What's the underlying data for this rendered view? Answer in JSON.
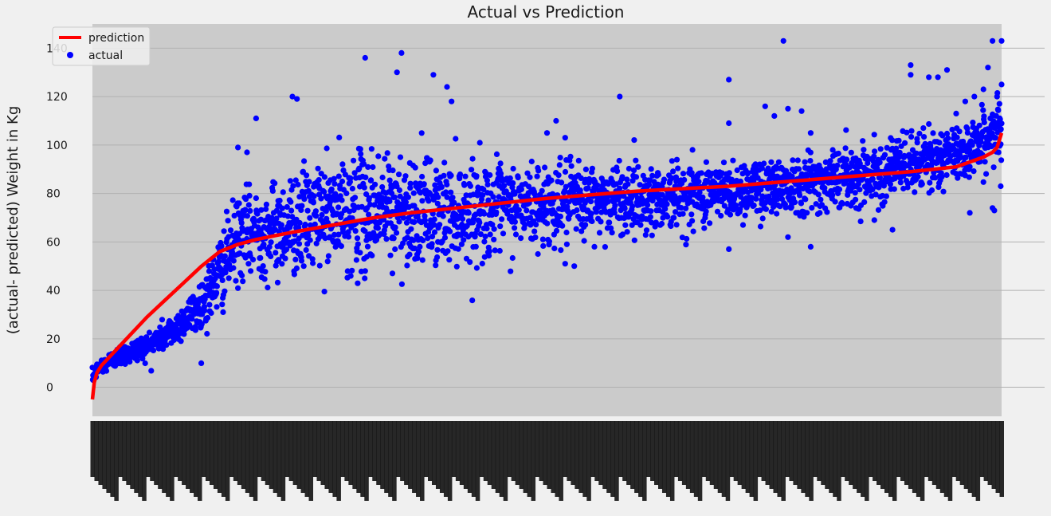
{
  "chart_data": {
    "type": "scatter",
    "title": "Actual vs Prediction",
    "xlabel": "",
    "ylabel": "(actual- predicted) Weight in Kg",
    "ylim": [
      -12,
      150
    ],
    "yticks": [
      0,
      20,
      40,
      60,
      80,
      100,
      120,
      140
    ],
    "grid": true,
    "legend_position": "top-left",
    "x_tick_labels": "dense overlapping rotated sample-index labels (illegible)",
    "n_points": 3000,
    "colors": {
      "prediction": "#ff0000",
      "actual": "#0000ff",
      "plot_bg": "#cbcbcb",
      "figure_bg": "#f0f0f0",
      "grid": "#b0b0b0"
    },
    "series": [
      {
        "name": "prediction",
        "kind": "line",
        "x": [
          0,
          0.002,
          0.005,
          0.01,
          0.02,
          0.04,
          0.06,
          0.08,
          0.1,
          0.12,
          0.14,
          0.16,
          0.18,
          0.2,
          0.22,
          0.25,
          0.28,
          0.31,
          0.35,
          0.4,
          0.45,
          0.5,
          0.55,
          0.6,
          0.65,
          0.7,
          0.75,
          0.8,
          0.85,
          0.9,
          0.95,
          0.98,
          0.99,
          0.995,
          1.0
        ],
        "y": [
          -5,
          2,
          6,
          9,
          13,
          21,
          29,
          36,
          43,
          50,
          56,
          59,
          61,
          62.5,
          64,
          66,
          68,
          70,
          72,
          74,
          76,
          78,
          79.5,
          81,
          82,
          83,
          84.5,
          86,
          87.5,
          89,
          91,
          95,
          97,
          99,
          105
        ]
      },
      {
        "name": "actual",
        "kind": "scatter",
        "trend_x": [
          0,
          0.005,
          0.01,
          0.03,
          0.06,
          0.09,
          0.12,
          0.14,
          0.16,
          0.18,
          0.2,
          0.24,
          0.28,
          0.32,
          0.38,
          0.45,
          0.55,
          0.65,
          0.75,
          0.85,
          0.95,
          0.99,
          1.0
        ],
        "trend_y": [
          4,
          7,
          9,
          13,
          17,
          24,
          34,
          47,
          62,
          64,
          65,
          70,
          72,
          74,
          72,
          74,
          77,
          79,
          83,
          88,
          96,
          104,
          107
        ],
        "spread_x": [
          0,
          0.1,
          0.14,
          0.3,
          0.5,
          0.7,
          0.9,
          1.0
        ],
        "spread_sd": [
          1.5,
          3.5,
          8,
          12,
          8,
          6,
          6,
          6
        ],
        "outliers": [
          [
            0.16,
            99
          ],
          [
            0.17,
            97
          ],
          [
            0.18,
            111
          ],
          [
            0.22,
            120
          ],
          [
            0.225,
            119
          ],
          [
            0.3,
            136
          ],
          [
            0.34,
            138
          ],
          [
            0.335,
            130
          ],
          [
            0.375,
            129
          ],
          [
            0.39,
            124
          ],
          [
            0.395,
            118
          ],
          [
            0.5,
            105
          ],
          [
            0.51,
            110
          ],
          [
            0.52,
            103
          ],
          [
            0.58,
            120
          ],
          [
            0.66,
            98
          ],
          [
            0.7,
            109
          ],
          [
            0.75,
            112
          ],
          [
            0.78,
            114
          ],
          [
            0.79,
            58
          ],
          [
            0.7,
            57
          ],
          [
            0.52,
            51
          ],
          [
            0.53,
            50
          ],
          [
            0.49,
            55
          ],
          [
            0.3,
            48
          ],
          [
            0.33,
            47
          ],
          [
            0.38,
            60
          ],
          [
            0.7,
            127
          ],
          [
            0.74,
            116
          ],
          [
            0.765,
            115
          ],
          [
            0.765,
            62
          ],
          [
            0.76,
            143
          ],
          [
            0.79,
            105
          ],
          [
            0.8,
            72
          ],
          [
            0.84,
            74
          ],
          [
            0.86,
            69
          ],
          [
            0.88,
            65
          ],
          [
            0.9,
            133
          ],
          [
            0.9,
            129
          ],
          [
            0.92,
            128
          ],
          [
            0.93,
            128
          ],
          [
            0.94,
            131
          ],
          [
            0.95,
            113
          ],
          [
            0.96,
            118
          ],
          [
            0.97,
            120
          ],
          [
            0.98,
            123
          ],
          [
            0.985,
            132
          ],
          [
            0.99,
            143
          ],
          [
            1.0,
            143
          ],
          [
            0.965,
            72
          ],
          [
            0.99,
            74
          ],
          [
            0.992,
            73
          ],
          [
            0.999,
            83
          ],
          [
            1.0,
            125
          ],
          [
            0.995,
            120
          ],
          [
            0.998,
            111
          ]
        ]
      }
    ]
  }
}
